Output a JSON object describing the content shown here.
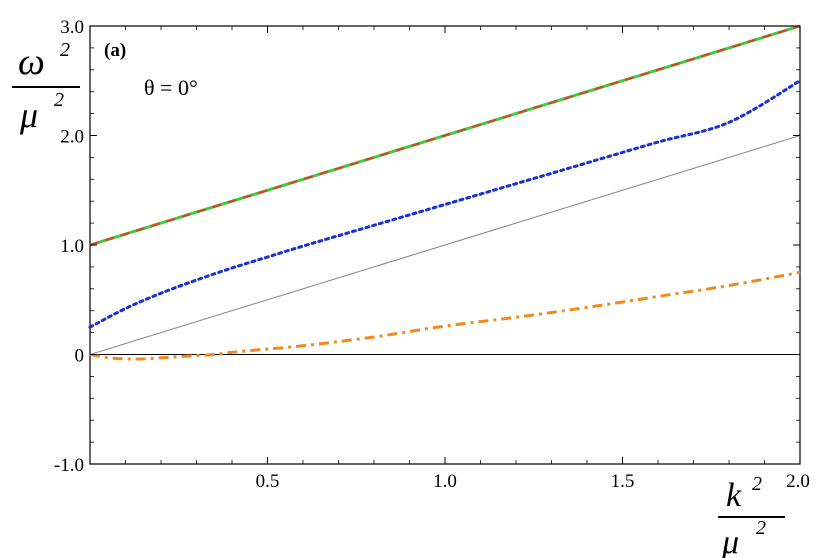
{
  "chart_data": {
    "type": "line",
    "panel_label": "(a)",
    "annotation": "θ = 0°",
    "ylabel": {
      "num": "ω",
      "num_sup": "2",
      "den": "μ",
      "den_sup": "2"
    },
    "xlabel": {
      "num": "k",
      "num_sup": "2",
      "den": "μ",
      "den_sup": "2"
    },
    "xlim": [
      0,
      2.0
    ],
    "ylim": [
      -1.0,
      3.0
    ],
    "xticks": [
      0.5,
      1.0,
      1.5,
      2.0
    ],
    "xtick_labels": [
      "0.5",
      "1.0",
      "1.5",
      "2.0"
    ],
    "yticks": [
      -1.0,
      0,
      1.0,
      2.0,
      3.0
    ],
    "ytick_labels": [
      "-1.0",
      "0",
      "1.0",
      "2.0",
      "3.0"
    ],
    "series": [
      {
        "style": "solid-thin",
        "color": "#8c8c8c",
        "x": [
          0,
          2.0
        ],
        "y": [
          0,
          2.0
        ]
      },
      {
        "style": "solid",
        "color": "#3fcc3f",
        "x": [
          0,
          2.0
        ],
        "y": [
          1.0,
          3.0
        ]
      },
      {
        "style": "dashed",
        "color": "#e23a2a",
        "x": [
          0,
          2.0
        ],
        "y": [
          1.0,
          3.0
        ]
      },
      {
        "style": "dotted",
        "color": "#1a2fd6",
        "x": [
          0,
          0.1,
          0.2,
          0.3,
          0.4,
          0.5,
          0.6,
          0.8,
          1.0,
          1.2,
          1.4,
          1.6,
          1.8,
          2.0
        ],
        "y": [
          0.25,
          0.42,
          0.56,
          0.68,
          0.79,
          0.89,
          0.99,
          1.18,
          1.37,
          1.56,
          1.75,
          1.94,
          2.12,
          2.5
        ]
      },
      {
        "style": "dashdot",
        "color": "#f08a1c",
        "x": [
          0,
          0.05,
          0.1,
          0.15,
          0.2,
          0.25,
          0.3,
          0.35,
          0.4,
          0.5,
          0.6,
          0.8,
          1.0,
          1.2,
          1.4,
          1.6,
          1.8,
          2.0
        ],
        "y": [
          0,
          -0.03,
          -0.04,
          -0.04,
          -0.03,
          -0.02,
          -0.01,
          0,
          0.02,
          0.05,
          0.08,
          0.16,
          0.26,
          0.34,
          0.43,
          0.53,
          0.63,
          0.75
        ]
      }
    ]
  }
}
